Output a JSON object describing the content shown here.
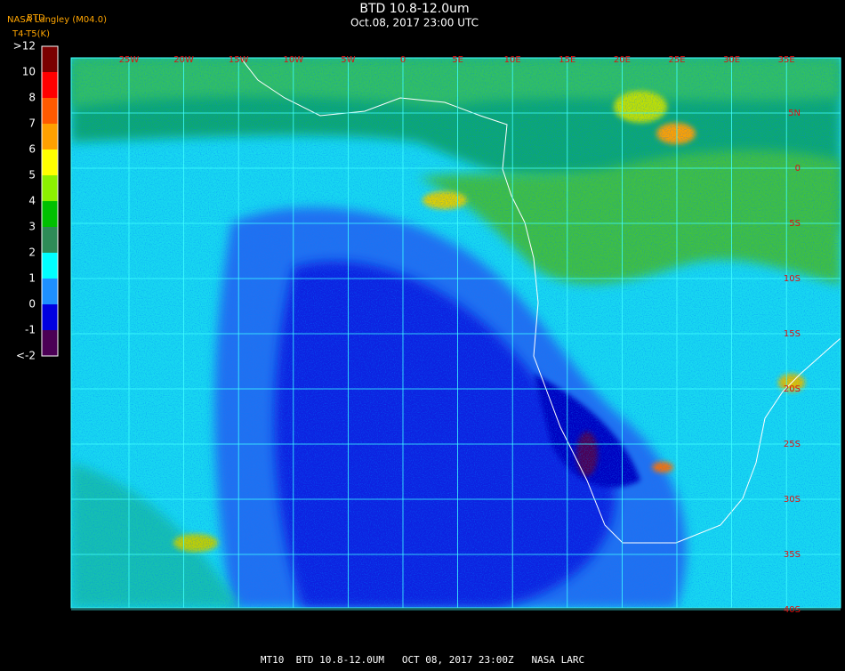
{
  "header": {
    "title": "BTD 10.8-12.0um",
    "subtitle": "Oct.08, 2017 23:00 UTC",
    "source": "NASA Langley (M04.0)",
    "product": "BTD",
    "units": "T4-T5(K)"
  },
  "colorbar": {
    "labels": [
      ">12",
      "10",
      "8",
      "7",
      "6",
      "5",
      "4",
      "3",
      "2",
      "1",
      "0",
      "-1",
      "<-2"
    ],
    "colors": [
      "#7a0000",
      "#ff0000",
      "#ff5a00",
      "#ffa000",
      "#ffff00",
      "#8cf000",
      "#00c000",
      "#2e8b57",
      "#00ffff",
      "#1e90ff",
      "#0000e0",
      "#4b0055"
    ]
  },
  "map": {
    "lon_labels": [
      "25W",
      "20W",
      "15W",
      "10W",
      "5W",
      "0",
      "5E",
      "10E",
      "15E",
      "20E",
      "25E",
      "30E",
      "35E"
    ],
    "lat_labels": [
      "5N",
      "0",
      "5S",
      "10S",
      "15S",
      "20S",
      "25S",
      "30S",
      "35S",
      "40S"
    ],
    "grid_color": "#40ffff",
    "label_color": "#e01010"
  },
  "footer": "MT10  BTD 10.8-12.0UM   OCT 08, 2017 23:00Z   NASA LARC"
}
